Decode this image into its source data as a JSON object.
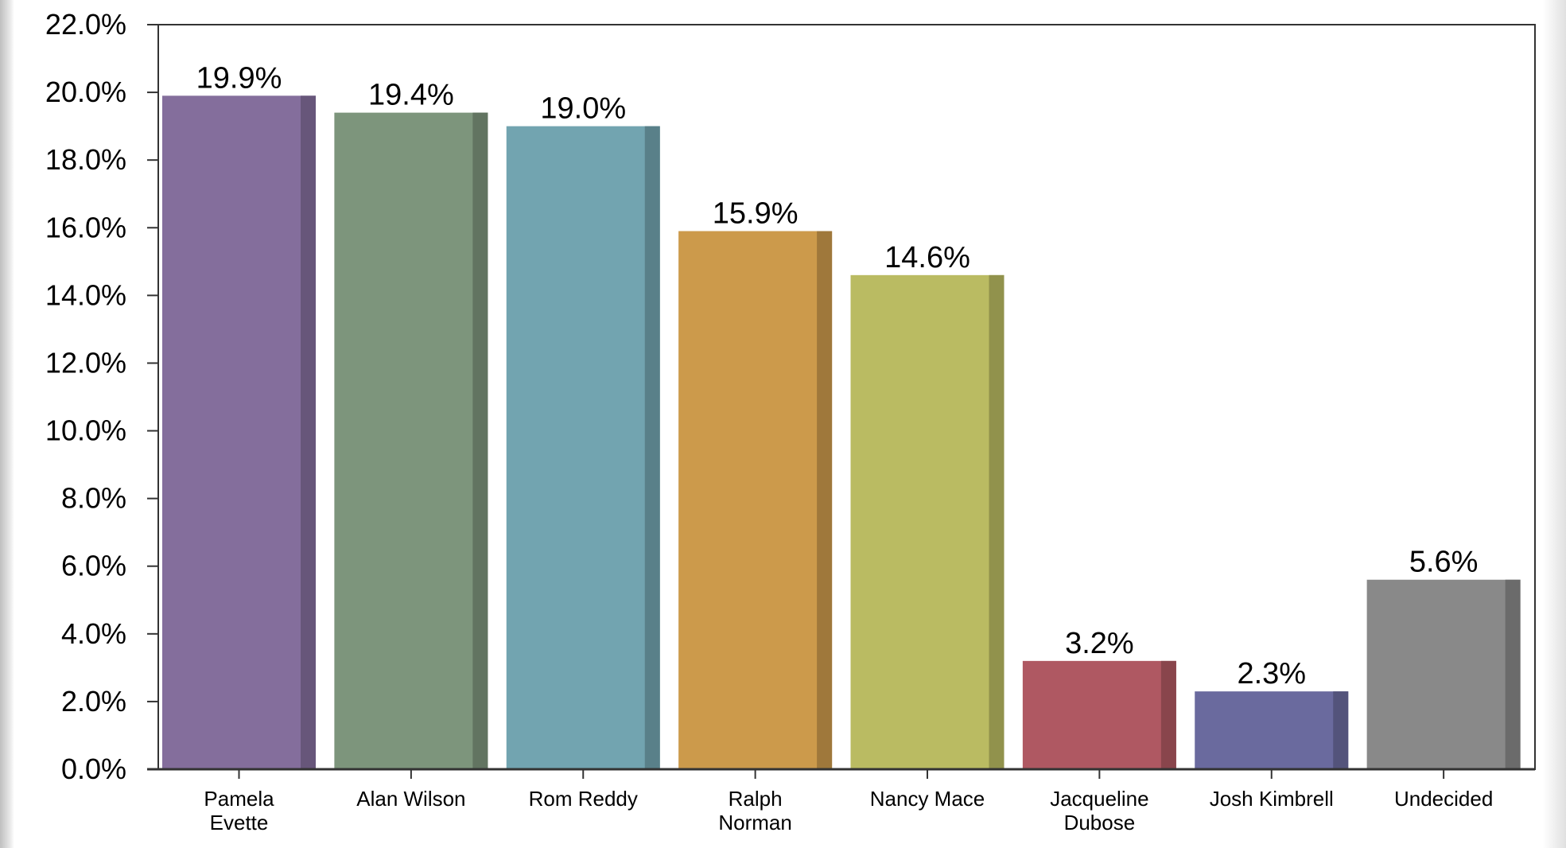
{
  "chart_data": {
    "type": "bar",
    "title": "",
    "xlabel": "",
    "ylabel": "",
    "categories": [
      [
        "Pamela",
        "Evette"
      ],
      [
        "Alan Wilson"
      ],
      [
        "Rom Reddy"
      ],
      [
        "Ralph",
        "Norman"
      ],
      [
        "Nancy Mace"
      ],
      [
        "Jacqueline",
        "Dubose"
      ],
      [
        "Josh Kimbrell"
      ],
      [
        "Undecided"
      ]
    ],
    "values": [
      19.9,
      19.4,
      19.0,
      15.9,
      14.6,
      3.2,
      2.3,
      5.6
    ],
    "value_labels": [
      "19.9%",
      "19.4%",
      "19.0%",
      "15.9%",
      "14.6%",
      "3.2%",
      "2.3%",
      "5.6%"
    ],
    "colors": [
      "#846e9c",
      "#7d957c",
      "#72a4b0",
      "#cc9a4b",
      "#babb62",
      "#af5862",
      "#6a6a9e",
      "#898989"
    ],
    "ylim": [
      0,
      22
    ],
    "yticks": [
      0,
      2,
      4,
      6,
      8,
      10,
      12,
      14,
      16,
      18,
      20,
      22
    ],
    "ytick_labels": [
      "0.0%",
      "2.0%",
      "4.0%",
      "6.0%",
      "8.0%",
      "10.0%",
      "12.0%",
      "14.0%",
      "16.0%",
      "18.0%",
      "20.0%",
      "22.0%"
    ],
    "grid": false,
    "legend": "none"
  }
}
